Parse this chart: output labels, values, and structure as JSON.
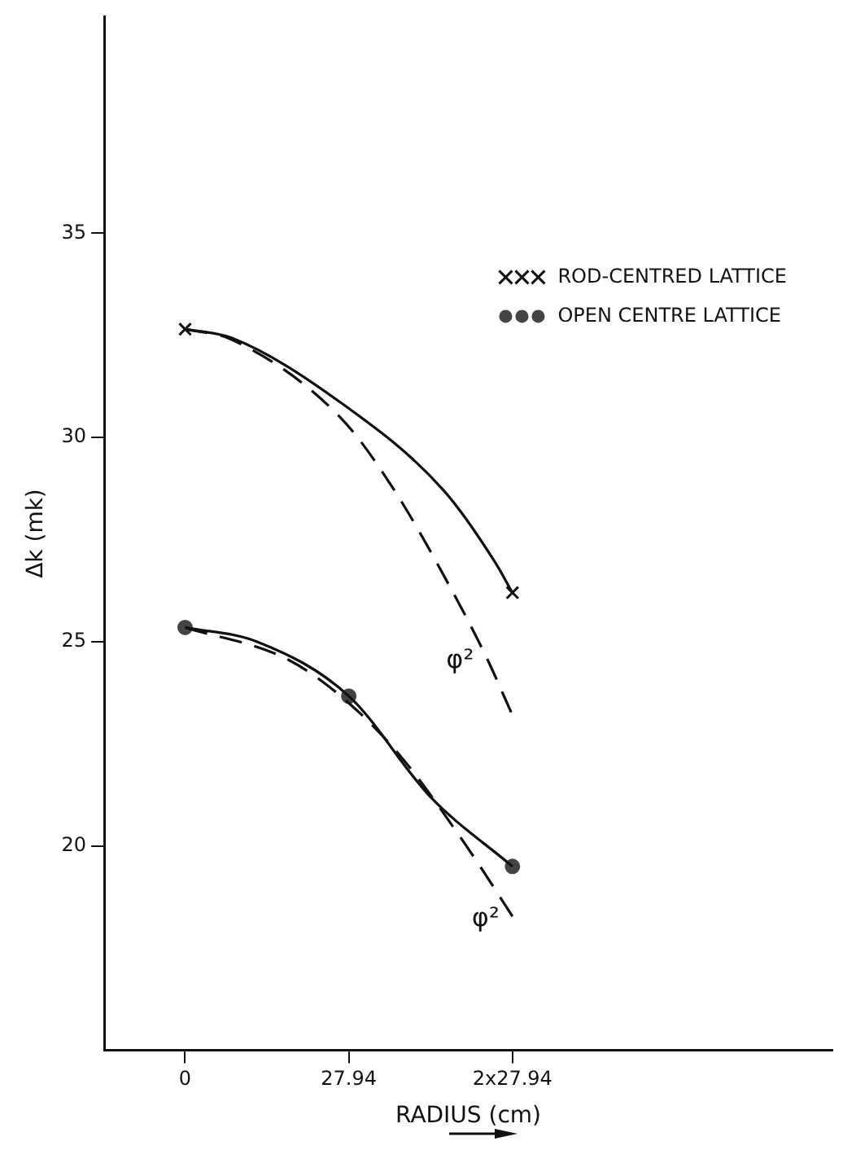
{
  "chart_data": {
    "type": "line",
    "xlabel": "RADIUS (cm)",
    "ylabel": "Δk (mk)",
    "xlim": [
      -13.8,
      110.5
    ],
    "ylim": [
      15,
      40.3
    ],
    "xticks": [
      0,
      27.94,
      {
        "value": 55.88,
        "label": "2x27.94"
      }
    ],
    "yticks": [
      20,
      25,
      30,
      35
    ],
    "grid": false,
    "legend": "top right",
    "series": [
      {
        "color": "#111111",
        "line_style": "solid",
        "marker": "none",
        "x": [
          0,
          7.9,
          26.5,
          44.1,
          52.9,
          55.88
        ],
        "values": [
          32.65,
          32.44,
          30.86,
          28.71,
          26.95,
          26.2
        ]
      },
      {
        "color": "#111111",
        "line_style": "dashed",
        "marker": "none",
        "x": [
          0,
          7.9,
          26.5,
          35.3,
          45,
          51.5,
          55.88
        ],
        "values": [
          32.65,
          32.4,
          30.49,
          28.8,
          26.4,
          24.6,
          23.2
        ]
      },
      {
        "color": "#111111",
        "line_style": "solid",
        "marker": "none",
        "x": [
          0,
          12.3,
          27.94,
          41.9,
          55.88
        ],
        "values": [
          25.35,
          25.0,
          23.67,
          21.2,
          19.5
        ]
      },
      {
        "color": "#111111",
        "line_style": "dashed",
        "marker": "none",
        "x": [
          0,
          17.6,
          27.94,
          37,
          48.5,
          55.88
        ],
        "values": [
          25.35,
          24.56,
          23.5,
          22.16,
          19.9,
          18.28
        ]
      },
      {
        "type": "scatter",
        "name": "ROD-CENTRED LATTICE",
        "color": "#111111",
        "marker": "cross",
        "x": [
          0,
          55.88
        ],
        "values": [
          32.65,
          26.2
        ]
      },
      {
        "type": "scatter",
        "name": "OPEN CENTRE LATTICE",
        "color": "#444444",
        "marker": "circle",
        "x": [
          0,
          27.94,
          55.88
        ],
        "values": [
          25.35,
          23.67,
          19.5
        ]
      }
    ],
    "annotations": [
      {
        "text": "φ²",
        "x": 51.5,
        "y": 24.6
      },
      {
        "text": "φ²",
        "x": 55.88,
        "y": 18.28
      }
    ]
  }
}
